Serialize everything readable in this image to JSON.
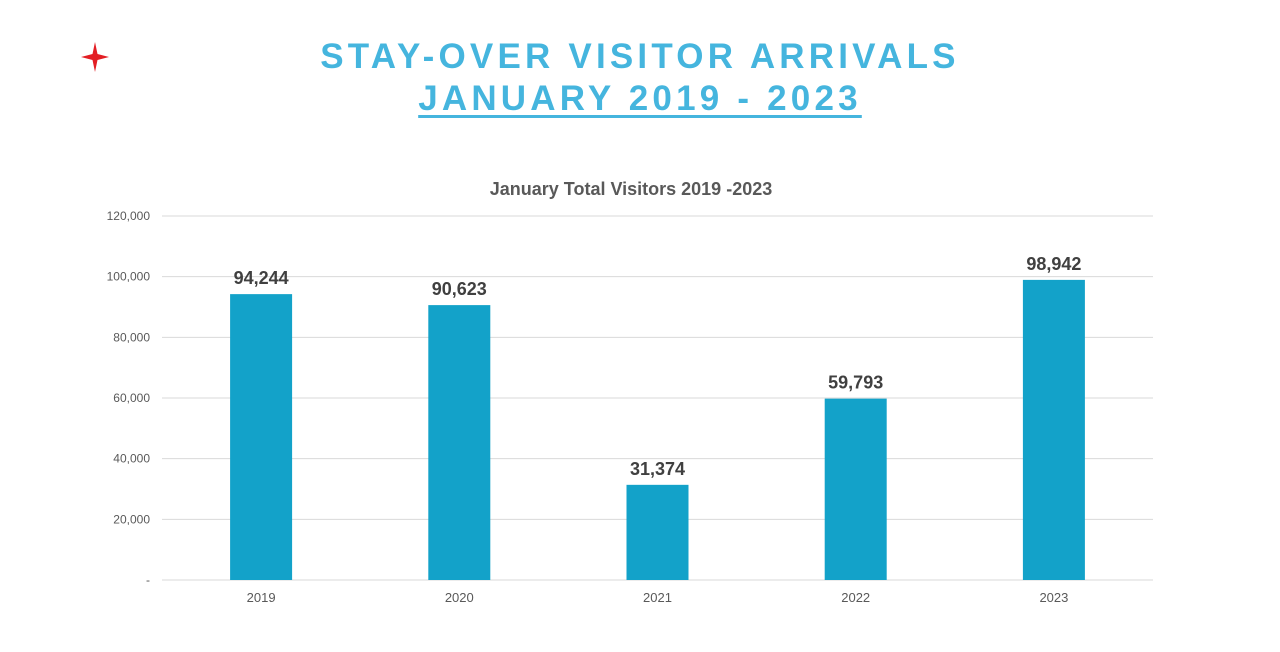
{
  "slide": {
    "title_line1": "STAY-OVER VISITOR ARRIVALS",
    "title_line2": "JANUARY 2019 - 2023",
    "logo_icon": "red-four-point-star-icon",
    "title_color": "#45b5de",
    "logo_color": "#e31e24"
  },
  "chart_data": {
    "type": "bar",
    "title": "January Total Visitors 2019 -2023",
    "categories": [
      "2019",
      "2020",
      "2021",
      "2022",
      "2023"
    ],
    "values": [
      94244,
      90623,
      31374,
      59793,
      98942
    ],
    "data_labels": [
      "94,244",
      "90,623",
      "31,374",
      "59,793",
      "98,942"
    ],
    "y_ticks": [
      "-",
      "20,000",
      "40,000",
      "60,000",
      "80,000",
      "100,000",
      "120,000"
    ],
    "ylim": [
      0,
      120000
    ],
    "xlabel": "",
    "ylabel": "",
    "grid": true,
    "legend": "none",
    "bar_color": "#13a2c9",
    "grid_color": "#d9d9d9"
  }
}
